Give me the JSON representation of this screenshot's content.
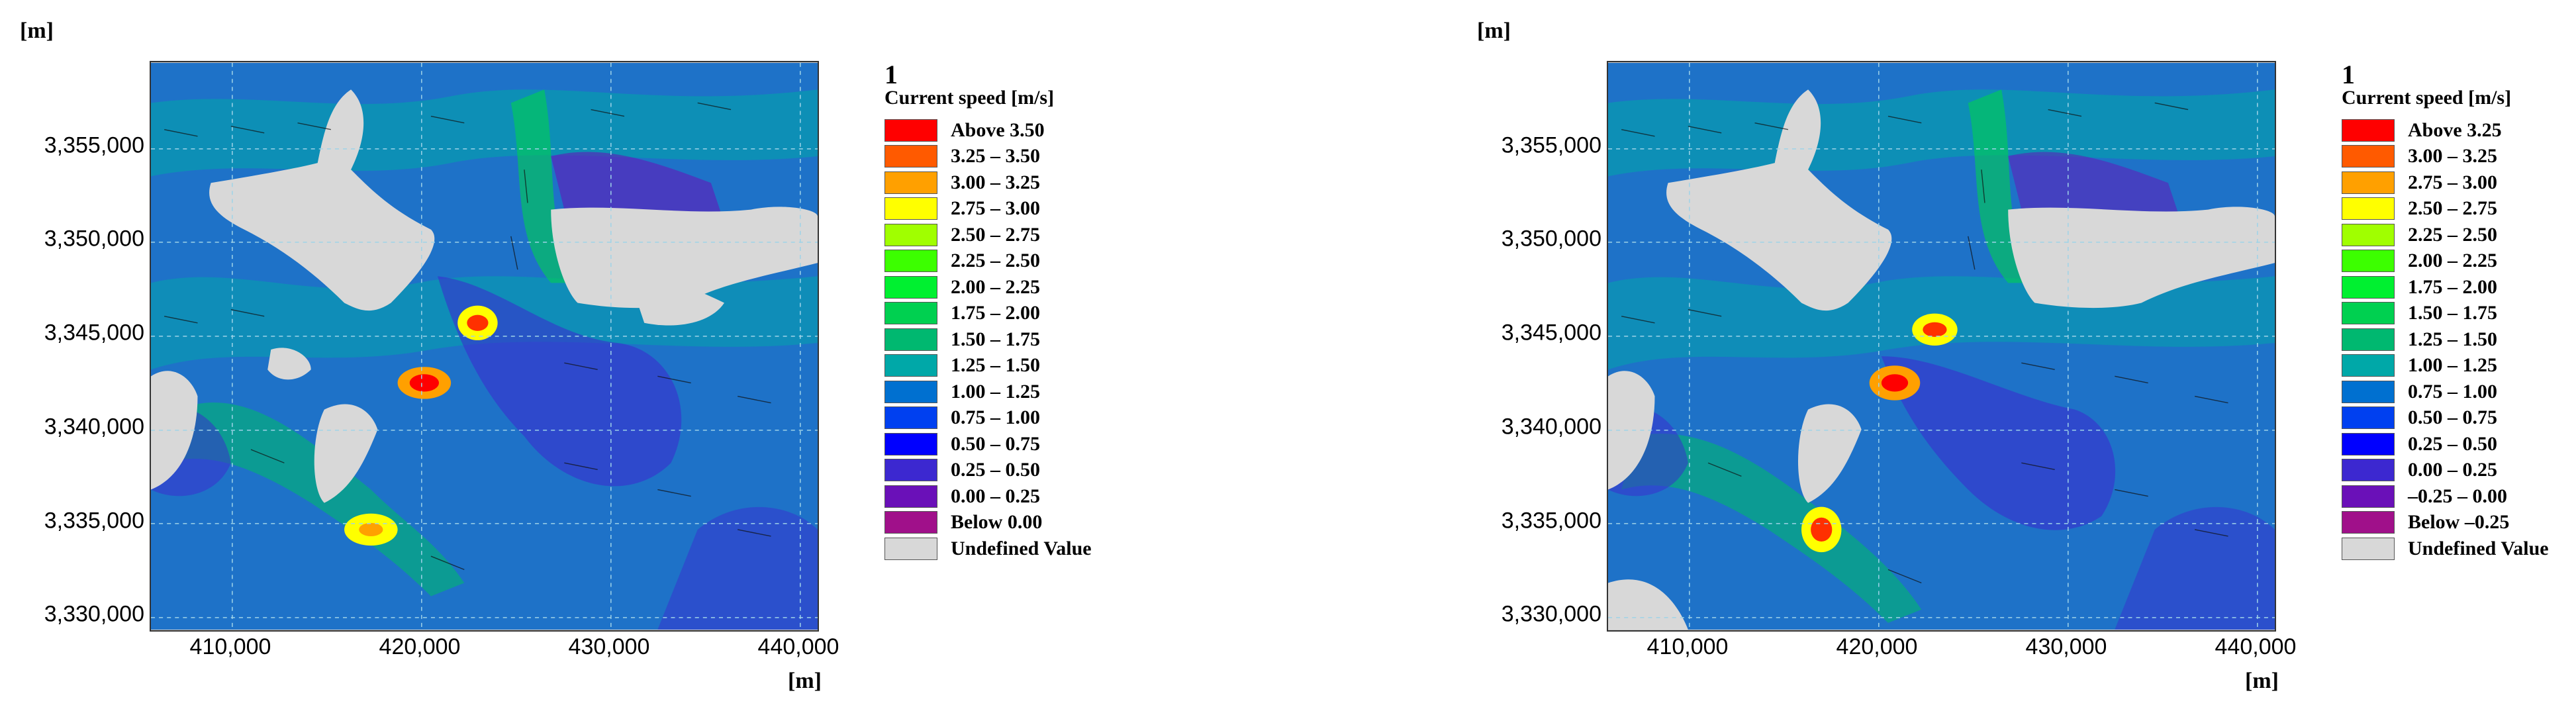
{
  "panels": [
    {
      "unit": "[m]",
      "legend_index": "1",
      "legend_title": "Current speed [m/s]",
      "y_ticks": [
        "3,355,000",
        "3,350,000",
        "3,345,000",
        "3,340,000",
        "3,335,000",
        "3,330,000"
      ],
      "x_ticks": [
        "410,000",
        "420,000",
        "430,000",
        "440,000"
      ],
      "legend": [
        {
          "label": "Above 3.50",
          "color": "#ff0000"
        },
        {
          "label": "3.25 – 3.50",
          "color": "#ff5a00"
        },
        {
          "label": "3.00 – 3.25",
          "color": "#ffa000"
        },
        {
          "label": "2.75 – 3.00",
          "color": "#ffff00"
        },
        {
          "label": "2.50 – 2.75",
          "color": "#a0ff00"
        },
        {
          "label": "2.25 – 2.50",
          "color": "#3cff00"
        },
        {
          "label": "2.00 – 2.25",
          "color": "#00f030"
        },
        {
          "label": "1.75 – 2.00",
          "color": "#00d050"
        },
        {
          "label": "1.50 – 1.75",
          "color": "#00b870"
        },
        {
          "label": "1.25 – 1.50",
          "color": "#00a8a8"
        },
        {
          "label": "1.00 – 1.25",
          "color": "#0070d0"
        },
        {
          "label": "0.75 – 1.00",
          "color": "#0040f0"
        },
        {
          "label": "0.50 – 0.75",
          "color": "#0000ff"
        },
        {
          "label": "0.25 – 0.50",
          "color": "#3c28d0"
        },
        {
          "label": "0.00 – 0.25",
          "color": "#6a10b8"
        },
        {
          "label": "Below 0.00",
          "color": "#a0108a"
        },
        {
          "label": "Undefined Value",
          "color": "#d8d8d8"
        }
      ]
    },
    {
      "unit": "[m]",
      "legend_index": "1",
      "legend_title": "Current speed [m/s]",
      "y_ticks": [
        "3,355,000",
        "3,350,000",
        "3,345,000",
        "3,340,000",
        "3,335,000",
        "3,330,000"
      ],
      "x_ticks": [
        "410,000",
        "420,000",
        "430,000",
        "440,000"
      ],
      "legend": [
        {
          "label": "Above 3.25",
          "color": "#ff0000"
        },
        {
          "label": "3.00 – 3.25",
          "color": "#ff5a00"
        },
        {
          "label": "2.75 – 3.00",
          "color": "#ffa000"
        },
        {
          "label": "2.50 – 2.75",
          "color": "#ffff00"
        },
        {
          "label": "2.25 – 2.50",
          "color": "#a0ff00"
        },
        {
          "label": "2.00 – 2.25",
          "color": "#3cff00"
        },
        {
          "label": "1.75 – 2.00",
          "color": "#00f030"
        },
        {
          "label": "1.50 – 1.75",
          "color": "#00d050"
        },
        {
          "label": "1.25 – 1.50",
          "color": "#00b870"
        },
        {
          "label": "1.00 – 1.25",
          "color": "#00a8a8"
        },
        {
          "label": "0.75 – 1.00",
          "color": "#0070d0"
        },
        {
          "label": "0.50 – 0.75",
          "color": "#0040f0"
        },
        {
          "label": "0.25 – 0.50",
          "color": "#0000ff"
        },
        {
          "label": "0.00 – 0.25",
          "color": "#3c28d0"
        },
        {
          "label": "–0.25 – 0.00",
          "color": "#6a10b8"
        },
        {
          "label": "Below –0.25",
          "color": "#a0108a"
        },
        {
          "label": "Undefined Value",
          "color": "#d8d8d8"
        }
      ]
    }
  ]
}
